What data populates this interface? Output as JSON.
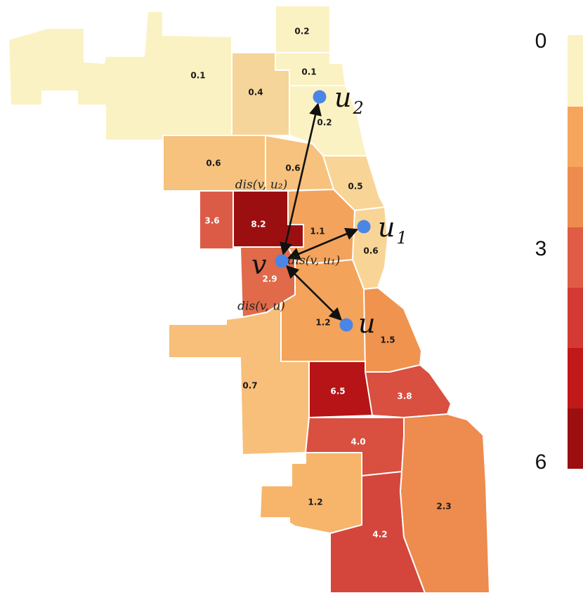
{
  "regions": [
    {
      "id": "far-northwest",
      "value": "0.1",
      "fill": "#fbf2c4",
      "text": "#1a1a1a"
    },
    {
      "id": "north-top",
      "value": "0.2",
      "fill": "#fbf2c4",
      "text": "#1a1a1a"
    },
    {
      "id": "north-2",
      "value": "0.1",
      "fill": "#fbf2c4",
      "text": "#1a1a1a"
    },
    {
      "id": "north-3",
      "value": "0.2",
      "fill": "#fbf2c4",
      "text": "#1a1a1a"
    },
    {
      "id": "north-center",
      "value": "0.4",
      "fill": "#f5d59a",
      "text": "#1a1a1a"
    },
    {
      "id": "west-north",
      "value": "0.6",
      "fill": "#f6c27e",
      "text": "#1a1a1a"
    },
    {
      "id": "center-north",
      "value": "0.6",
      "fill": "#f6c27e",
      "text": "#1a1a1a"
    },
    {
      "id": "lakeshore-north",
      "value": "0.5",
      "fill": "#f8d596",
      "text": "#1a1a1a"
    },
    {
      "id": "west-side-a",
      "value": "3.6",
      "fill": "#dc5b46",
      "text": "#ffffff"
    },
    {
      "id": "west-side-b",
      "value": "8.2",
      "fill": "#9c0f10",
      "text": "#ffffff"
    },
    {
      "id": "near-west",
      "value": "1.1",
      "fill": "#f3a35c",
      "text": "#1a1a1a"
    },
    {
      "id": "lakeshore-mid",
      "value": "0.6",
      "fill": "#f8d596",
      "text": "#1a1a1a"
    },
    {
      "id": "southwest-a",
      "value": "2.9",
      "fill": "#e06a4a",
      "text": "#ffffff"
    },
    {
      "id": "south-center",
      "value": "1.2",
      "fill": "#f4a35a",
      "text": "#1a1a1a"
    },
    {
      "id": "south-lake",
      "value": "1.5",
      "fill": "#f0934f",
      "text": "#1a1a1a"
    },
    {
      "id": "southwest-b",
      "value": "0.7",
      "fill": "#f7bf79",
      "text": "#1a1a1a"
    },
    {
      "id": "south-mid",
      "value": "6.5",
      "fill": "#b61416",
      "text": "#ffffff"
    },
    {
      "id": "south-east",
      "value": "3.8",
      "fill": "#d94f40",
      "text": "#ffffff"
    },
    {
      "id": "far-south-a",
      "value": "4.0",
      "fill": "#d94f40",
      "text": "#ffffff"
    },
    {
      "id": "far-southwest",
      "value": "1.2",
      "fill": "#f6b56b",
      "text": "#1a1a1a"
    },
    {
      "id": "far-south-b",
      "value": "4.2",
      "fill": "#d4463c",
      "text": "#ffffff"
    },
    {
      "id": "far-southeast",
      "value": "2.3",
      "fill": "#ee8b4e",
      "text": "#1a1a1a"
    }
  ],
  "nodes": [
    {
      "id": "v",
      "label": "v",
      "sub": ""
    },
    {
      "id": "u",
      "label": "u",
      "sub": ""
    },
    {
      "id": "u1",
      "label": "u",
      "sub": "1"
    },
    {
      "id": "u2",
      "label": "u",
      "sub": "2"
    }
  ],
  "node_color": "#4b86e6",
  "edges": [
    {
      "from": "v",
      "to": "u2",
      "label": "dis(v, u₂)"
    },
    {
      "from": "v",
      "to": "u1",
      "label": "dis(v, u₁)"
    },
    {
      "from": "v",
      "to": "u",
      "label": "dis(v, u)"
    }
  ],
  "legend": {
    "ticks": [
      "0",
      "3",
      "6"
    ],
    "colors": [
      "#fbf2c4",
      "#f6a55d",
      "#ee8b4e",
      "#e05c45",
      "#d23a33",
      "#c1181a",
      "#9c0f10"
    ]
  }
}
